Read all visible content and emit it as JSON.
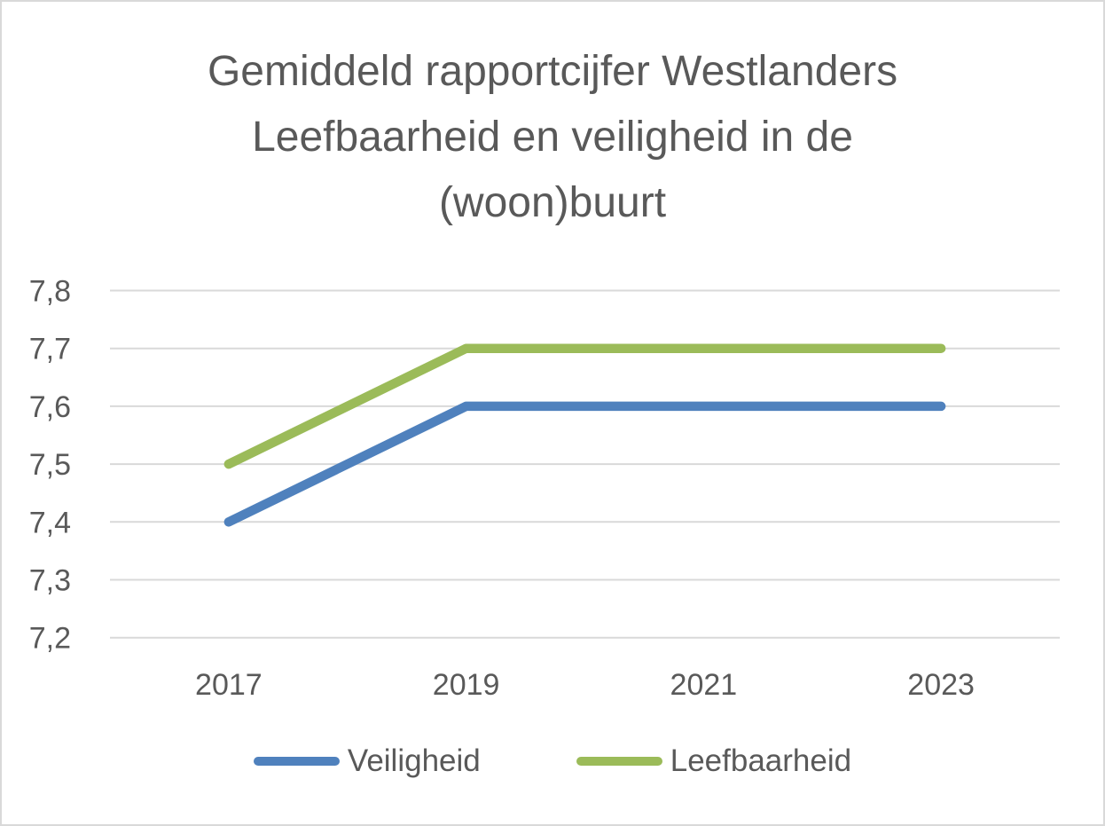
{
  "title_lines": [
    "Gemiddeld rapportcijfer Westlanders",
    "Leefbaarheid en veiligheid in de",
    "(woon)buurt"
  ],
  "chart_data": {
    "type": "line",
    "title": "Gemiddeld rapportcijfer Westlanders Leefbaarheid en veiligheid in de (woon)buurt",
    "categories": [
      "2017",
      "2019",
      "2021",
      "2023"
    ],
    "series": [
      {
        "name": "Veiligheid",
        "color": "#4F81BD",
        "values": [
          7.4,
          7.6,
          7.6,
          7.6
        ]
      },
      {
        "name": "Leefbaarheid",
        "color": "#9BBB59",
        "values": [
          7.5,
          7.7,
          7.7,
          7.7
        ]
      }
    ],
    "ylim": [
      7.2,
      7.8
    ],
    "ytick_step": 0.1,
    "ytick_labels": [
      "7,2",
      "7,3",
      "7,4",
      "7,5",
      "7,6",
      "7,7",
      "7,8"
    ],
    "xlabel": "",
    "ylabel": "",
    "decimal_separator": ",",
    "grid": true,
    "legend_position": "bottom"
  },
  "styles": {
    "text_color": "#595959",
    "gridline_color": "#D9D9D9",
    "border_color": "#D9D9D9",
    "background": "#FFFFFF"
  }
}
